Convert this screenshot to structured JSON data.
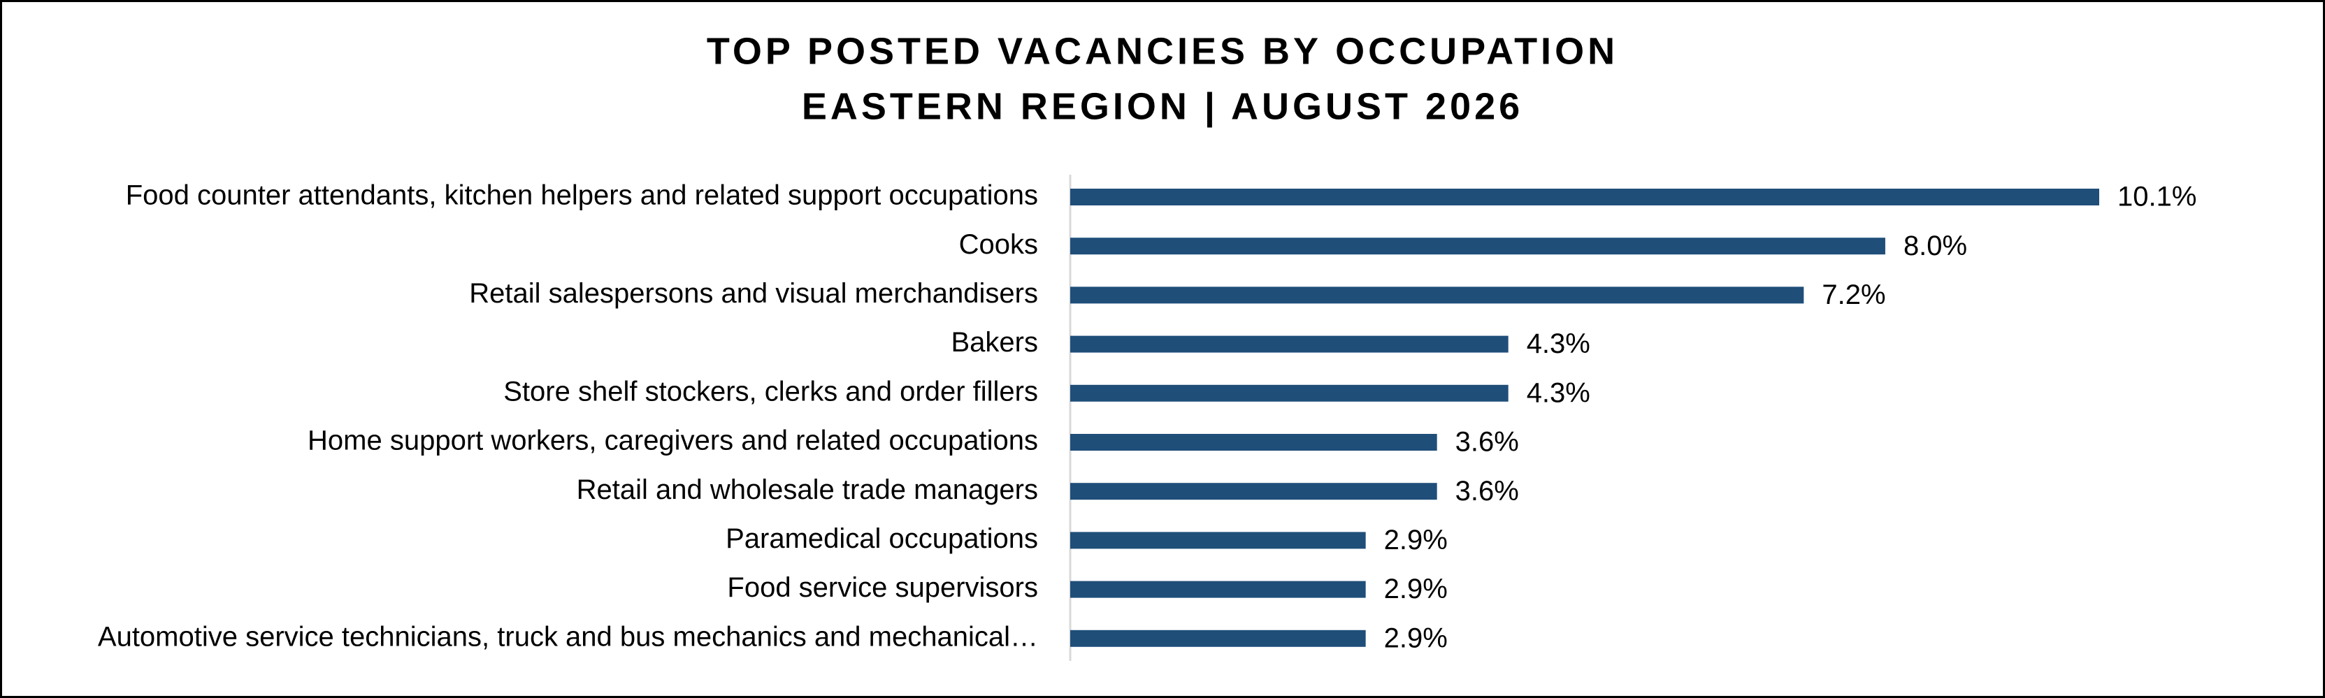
{
  "chart_data": {
    "type": "bar",
    "orientation": "horizontal",
    "title": "TOP POSTED VACANCIES BY OCCUPATION",
    "subtitle": "EASTERN REGION | AUGUST 2026",
    "categories": [
      "Food counter attendants, kitchen helpers and related support occupations",
      "Cooks",
      "Retail salespersons and visual merchandisers",
      "Bakers",
      "Store shelf stockers, clerks and order fillers",
      "Home support workers, caregivers and related occupations",
      "Retail and wholesale trade managers",
      "Paramedical occupations",
      "Food service supervisors",
      "Automotive service technicians, truck and bus mechanics and mechanical…"
    ],
    "values": [
      10.1,
      8.0,
      7.2,
      4.3,
      4.3,
      3.6,
      3.6,
      2.9,
      2.9,
      2.9
    ],
    "value_labels": [
      "10.1%",
      "8.0%",
      "7.2%",
      "4.3%",
      "4.3%",
      "3.6%",
      "3.6%",
      "2.9%",
      "2.9%",
      "2.9%"
    ],
    "color": "#1f4e79"
  }
}
